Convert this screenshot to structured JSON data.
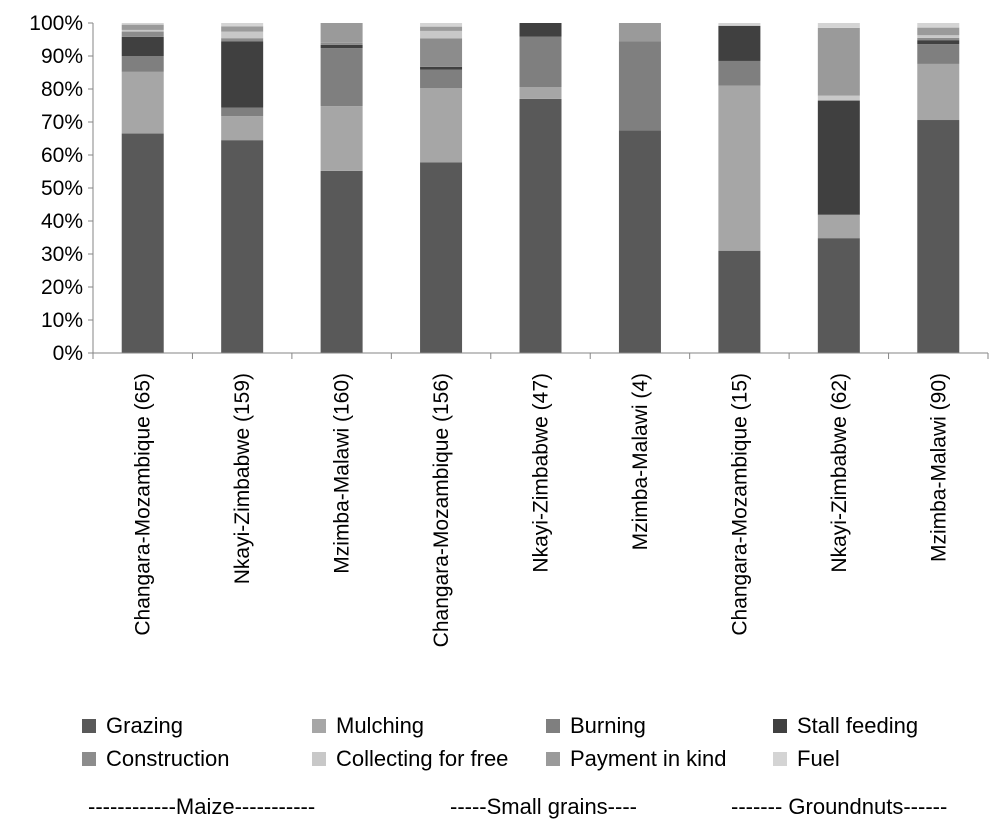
{
  "chart_data": {
    "type": "bar",
    "stacked": true,
    "categories": [
      "Changara-Mozambique (65)",
      "Nkayi-Zimbabwe (159)",
      "Mzimba-Malawi (160)",
      "Changara-Mozambique (156)",
      "Nkayi-Zimbabwe (47)",
      "Mzimba-Malawi (4)",
      "Changara-Mozambique (15)",
      "Nkayi-Zimbabwe (62)",
      "Mzimba-Malawi (90)"
    ],
    "series": [
      {
        "name": "Grazing",
        "color": "#595959",
        "values": [
          66.5,
          64.5,
          55.2,
          57.8,
          77.0,
          67.5,
          31.0,
          34.8,
          70.6
        ]
      },
      {
        "name": "Mulching",
        "color": "#a6a6a6",
        "values": [
          18.7,
          7.3,
          19.6,
          22.5,
          3.6,
          0,
          50.0,
          7.1,
          17.0
        ]
      },
      {
        "name": "Burning",
        "color": "#7f7f7f",
        "values": [
          4.8,
          2.6,
          17.6,
          5.6,
          15.3,
          27.0,
          7.5,
          0,
          6.0
        ]
      },
      {
        "name": "Stall feeding",
        "color": "#404040",
        "values": [
          5.8,
          20.0,
          1.0,
          0.8,
          4.1,
          0,
          10.6,
          34.6,
          1.2
        ]
      },
      {
        "name": "Construction",
        "color": "#8c8c8c",
        "values": [
          1.6,
          1.0,
          0.6,
          8.6,
          0,
          0,
          0,
          0,
          0.7
        ]
      },
      {
        "name": "Collecting for free",
        "color": "#c8c8c8",
        "values": [
          0.5,
          2.0,
          0,
          2.3,
          0,
          0,
          0.3,
          1.5,
          0.8
        ]
      },
      {
        "name": "Payment in kind",
        "color": "#9a9a9a",
        "values": [
          1.6,
          1.6,
          6.0,
          1.3,
          0,
          5.5,
          0,
          20.5,
          2.3
        ]
      },
      {
        "name": "Fuel",
        "color": "#d4d4d4",
        "values": [
          0.5,
          1.0,
          0,
          1.1,
          0,
          0,
          0.6,
          1.5,
          1.4
        ]
      }
    ],
    "ylim": [
      0,
      100
    ],
    "yticks": [
      "0%",
      "10%",
      "20%",
      "30%",
      "40%",
      "50%",
      "60%",
      "70%",
      "80%",
      "90%",
      "100%"
    ],
    "legend_position": "bottom",
    "groups": [
      {
        "label": "------------Maize-----------"
      },
      {
        "label": "-----Small grains----"
      },
      {
        "label": "------- Groundnuts------"
      }
    ],
    "grid": false
  }
}
